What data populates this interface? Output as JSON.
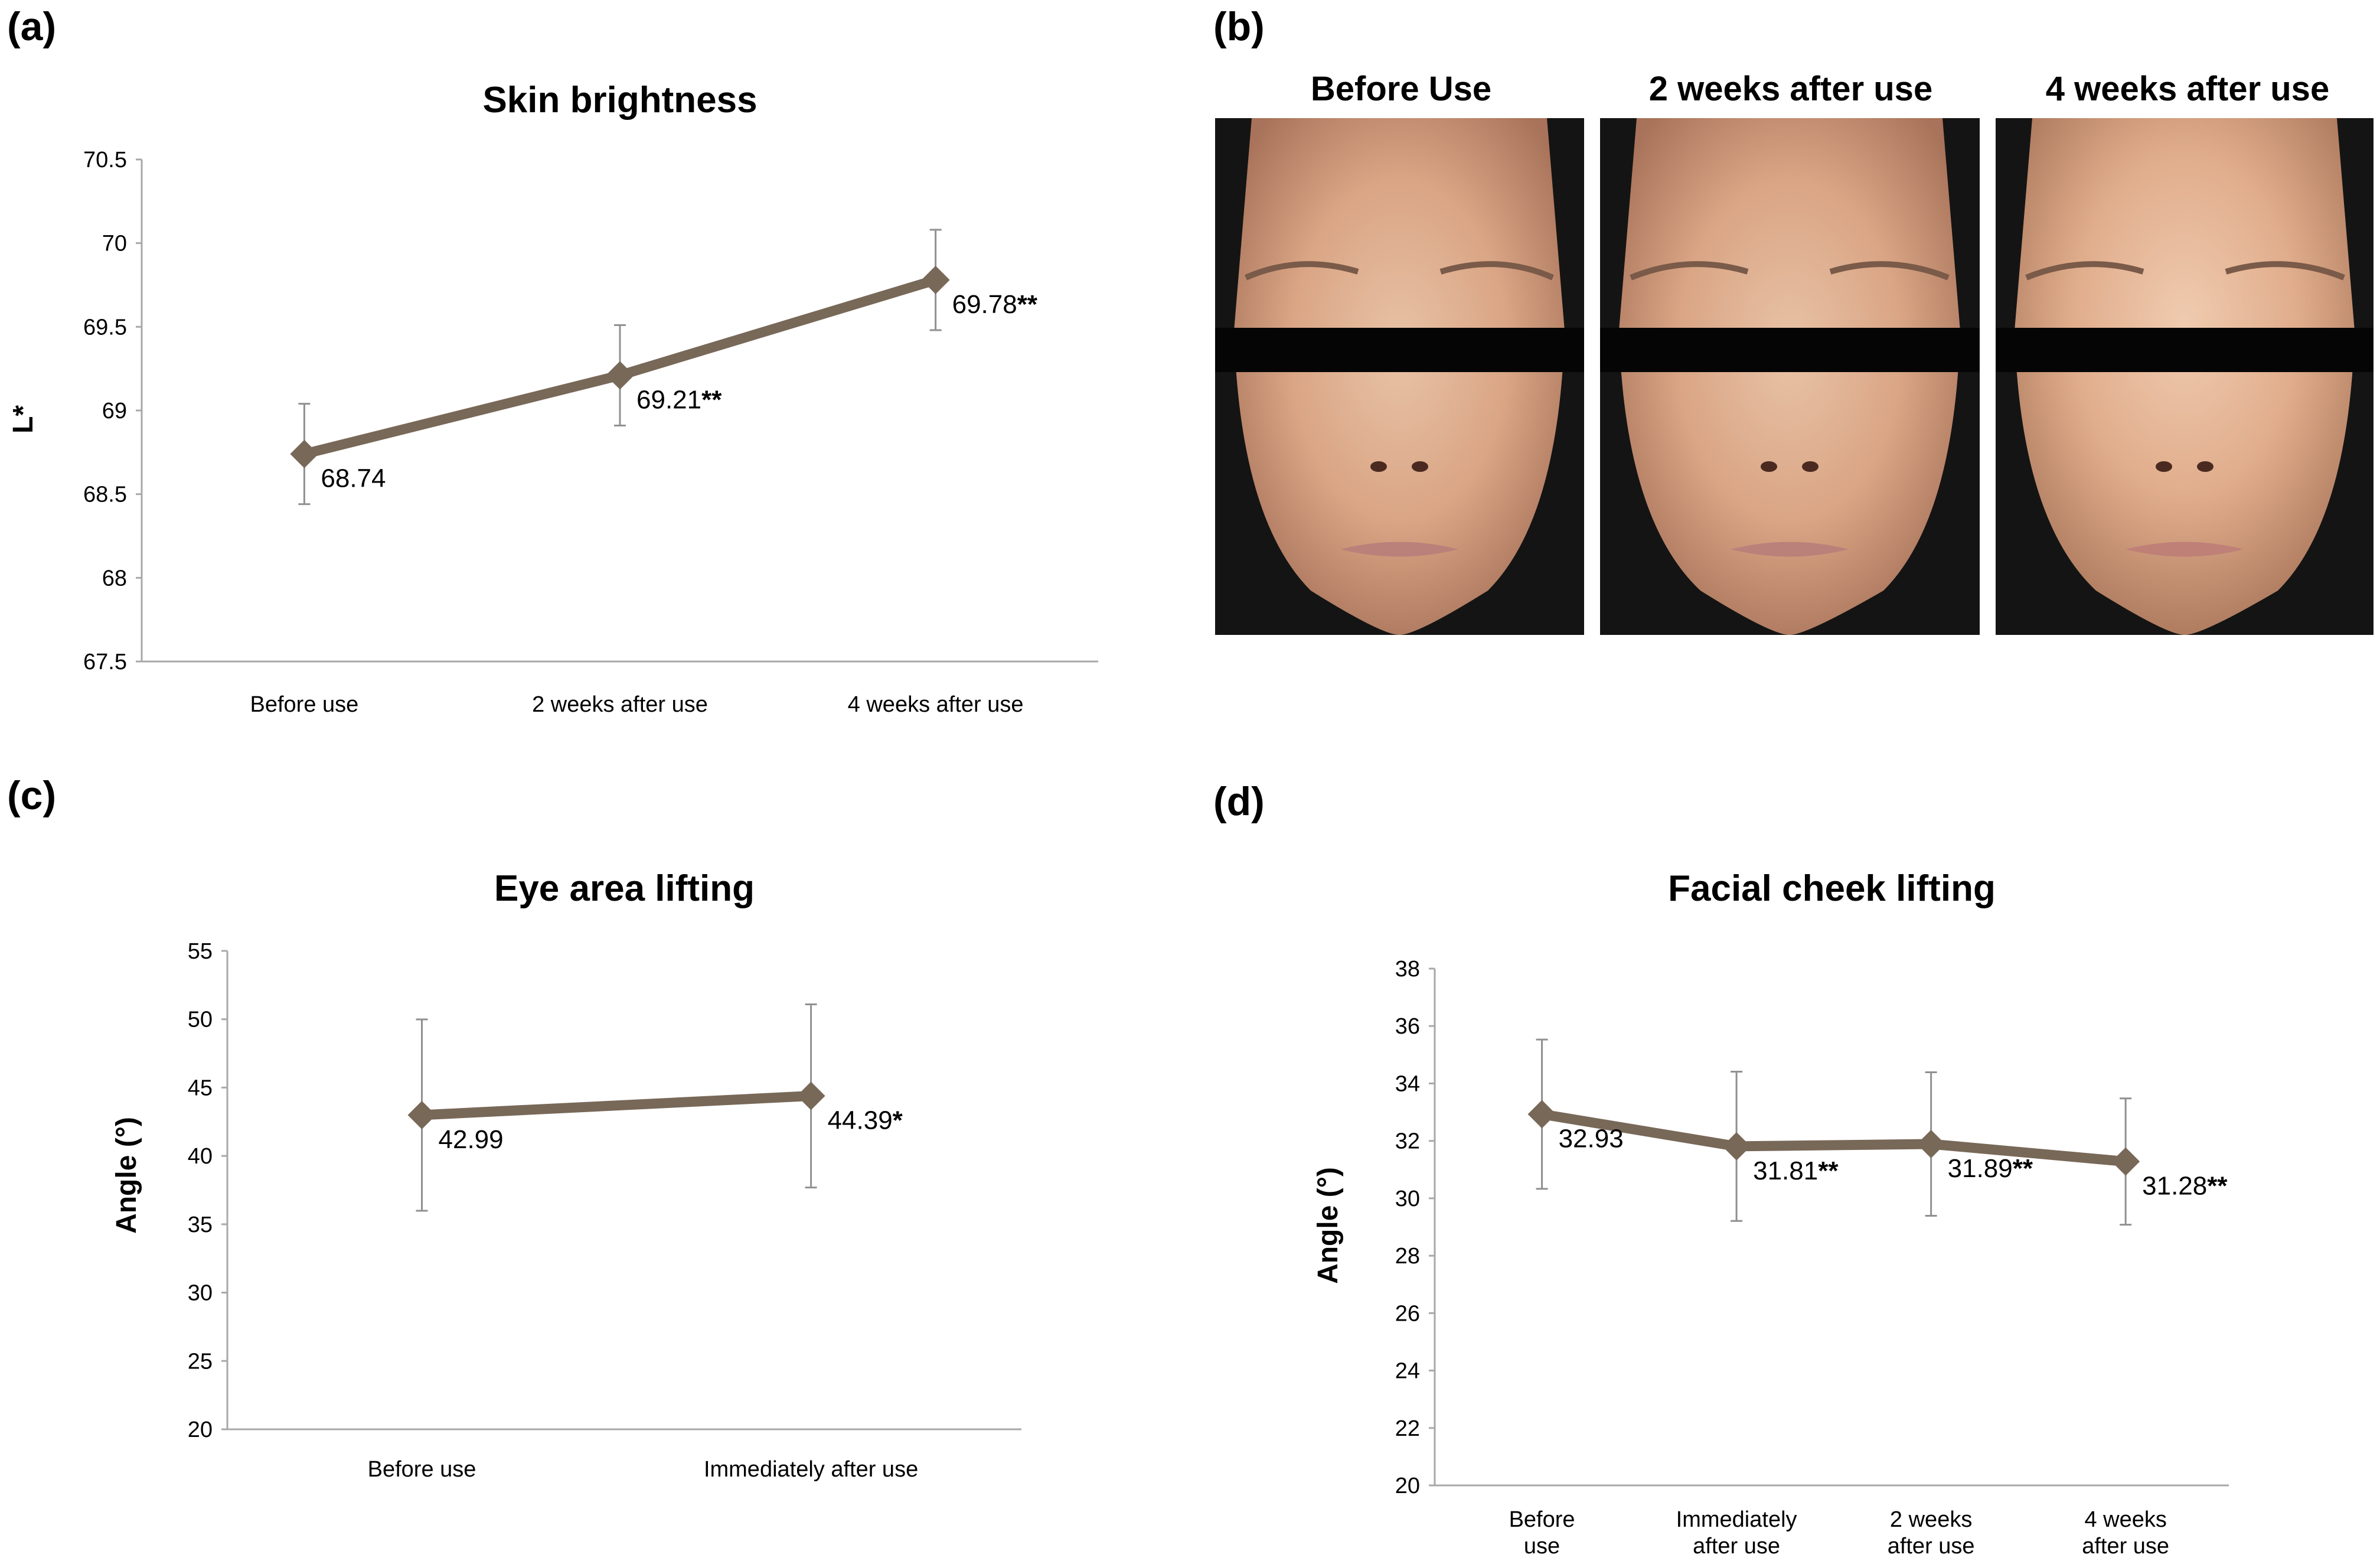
{
  "panels": {
    "a": "(a)",
    "b": "(b)",
    "c": "(c)",
    "d": "(d)"
  },
  "photos": {
    "labels": [
      "Before Use",
      "2 weeks after use",
      "4 weeks after use"
    ]
  },
  "colors": {
    "series": "#786858",
    "error_bar": "#909090",
    "axis": "#a8a8a8",
    "censor_bar": "#050505"
  },
  "chart_data": [
    {
      "id": "a",
      "type": "line",
      "title": "Skin brightness",
      "xlabel": "",
      "ylabel": "L*",
      "ylim": [
        67.5,
        70.5
      ],
      "yticks": [
        "67.5",
        "68",
        "68.5",
        "69",
        "69.5",
        "70",
        "70.5"
      ],
      "ytick_values": [
        67.5,
        68,
        68.5,
        69,
        69.5,
        70,
        70.5
      ],
      "categories": [
        [
          "Before use"
        ],
        [
          "2 weeks after use"
        ],
        [
          "4 weeks after use"
        ]
      ],
      "values": [
        68.74,
        69.21,
        69.78
      ],
      "errors": [
        0.3,
        0.3,
        0.3
      ],
      "data_labels": [
        "68.74",
        "69.21",
        "69.78"
      ],
      "significance": [
        "",
        "**",
        "**"
      ]
    },
    {
      "id": "c",
      "type": "line",
      "title": "Eye area lifting",
      "xlabel": "",
      "ylabel": "Angle (°)",
      "ylim": [
        20,
        55
      ],
      "yticks": [
        "20",
        "25",
        "30",
        "35",
        "40",
        "45",
        "50",
        "55"
      ],
      "ytick_values": [
        20,
        25,
        30,
        35,
        40,
        45,
        50,
        55
      ],
      "categories": [
        [
          "Before use"
        ],
        [
          "Immediately after use"
        ]
      ],
      "values": [
        42.99,
        44.39
      ],
      "errors": [
        7.0,
        6.7
      ],
      "data_labels": [
        "42.99",
        "44.39"
      ],
      "significance": [
        "",
        "*"
      ]
    },
    {
      "id": "d",
      "type": "line",
      "title": "Facial cheek lifting",
      "xlabel": "",
      "ylabel": "Angle (°)",
      "ylim": [
        20,
        38
      ],
      "yticks": [
        "20",
        "22",
        "24",
        "26",
        "28",
        "30",
        "32",
        "34",
        "36",
        "38"
      ],
      "ytick_values": [
        20,
        22,
        24,
        26,
        28,
        30,
        32,
        34,
        36,
        38
      ],
      "categories": [
        [
          "Before",
          "use"
        ],
        [
          "Immediately",
          "after use"
        ],
        [
          "2 weeks",
          "after use"
        ],
        [
          "4 weeks",
          "after use"
        ]
      ],
      "values": [
        32.93,
        31.81,
        31.89,
        31.28
      ],
      "errors": [
        2.6,
        2.6,
        2.5,
        2.2
      ],
      "data_labels": [
        "32.93",
        "31.81",
        "31.89",
        "31.28"
      ],
      "significance": [
        "",
        "**",
        "**",
        "**"
      ]
    }
  ]
}
